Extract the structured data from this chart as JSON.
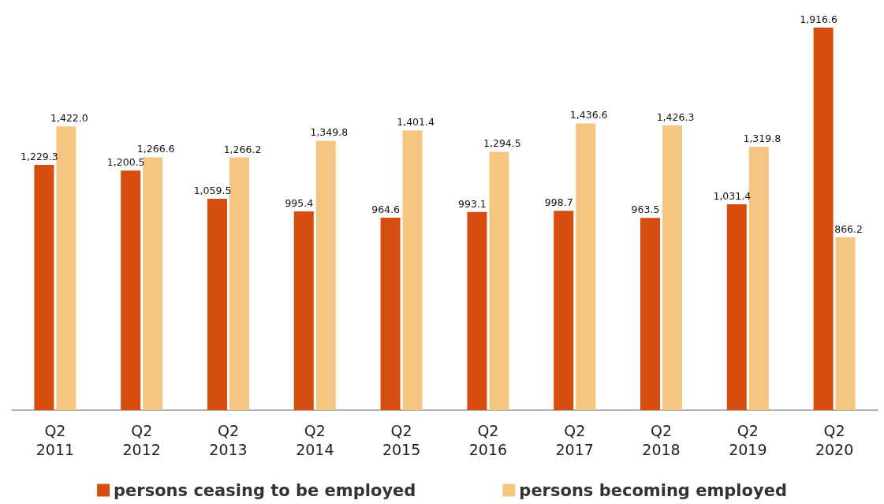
{
  "chart_data": {
    "type": "bar",
    "categories": [
      "Q2\n2011",
      "Q2\n2012",
      "Q2\n2013",
      "Q2\n2014",
      "Q2\n2015",
      "Q2\n2016",
      "Q2\n2017",
      "Q2\n2018",
      "Q2\n2019",
      "Q2\n2020"
    ],
    "series": [
      {
        "name": "persons ceasing to be employed",
        "color": "#d64d10",
        "values": [
          1229.3,
          1200.5,
          1059.5,
          995.4,
          964.6,
          993.1,
          998.7,
          963.5,
          1031.4,
          1916.6
        ],
        "value_labels": [
          "1,229.3",
          "1,200.5",
          "1,059.5",
          "995.4",
          "964.6",
          "993.1",
          "998.7",
          "963.5",
          "1,031.4",
          "1,916.6"
        ]
      },
      {
        "name": "persons becoming employed",
        "color": "#f5c682",
        "values": [
          1422.0,
          1266.6,
          1266.2,
          1349.8,
          1401.4,
          1294.5,
          1436.6,
          1426.3,
          1319.8,
          866.2
        ],
        "value_labels": [
          "1,422.0",
          "1,266.6",
          "1,266.2",
          "1,349.8",
          "1,401.4",
          "1,294.5",
          "1,436.6",
          "1,426.3",
          "1,319.8",
          "866.2"
        ]
      }
    ],
    "legend": "bottom",
    "grid": false
  }
}
